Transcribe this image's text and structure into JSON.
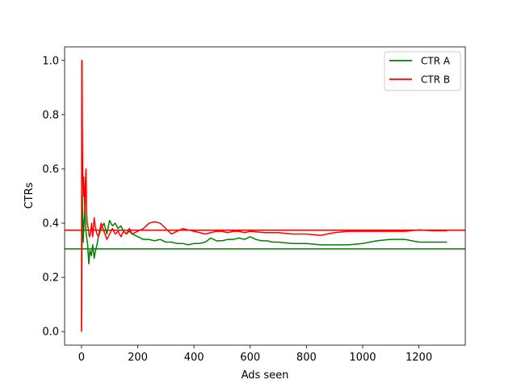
{
  "chart_data": {
    "type": "line",
    "title": "",
    "xlabel": "Ads seen",
    "ylabel": "CTRs",
    "xlim": [
      -60,
      1365
    ],
    "ylim": [
      -0.05,
      1.05
    ],
    "xticks": [
      0,
      200,
      400,
      600,
      800,
      1000,
      1200
    ],
    "yticks": [
      0.0,
      0.2,
      0.4,
      0.6,
      0.8,
      1.0
    ],
    "xtick_labels": [
      "0",
      "200",
      "400",
      "600",
      "800",
      "1000",
      "1200"
    ],
    "ytick_labels": [
      "0.0",
      "0.2",
      "0.4",
      "0.6",
      "0.8",
      "1.0"
    ],
    "grid": false,
    "legend_position": "top-right",
    "series": [
      {
        "name": "CTR A",
        "color": "#008000",
        "x": [
          0,
          3,
          6,
          9,
          12,
          15,
          18,
          22,
          26,
          30,
          35,
          40,
          45,
          50,
          55,
          60,
          70,
          80,
          90,
          100,
          110,
          120,
          130,
          140,
          150,
          160,
          170,
          180,
          200,
          220,
          240,
          260,
          280,
          300,
          320,
          340,
          360,
          380,
          400,
          420,
          440,
          460,
          480,
          500,
          520,
          540,
          560,
          580,
          600,
          620,
          640,
          660,
          680,
          700,
          750,
          800,
          850,
          900,
          950,
          1000,
          1050,
          1100,
          1150,
          1200,
          1250,
          1300
        ],
        "y": [
          0.0,
          0.5,
          0.33,
          0.4,
          0.45,
          0.38,
          0.35,
          0.32,
          0.25,
          0.3,
          0.28,
          0.32,
          0.27,
          0.3,
          0.32,
          0.35,
          0.38,
          0.4,
          0.36,
          0.41,
          0.39,
          0.4,
          0.38,
          0.39,
          0.37,
          0.36,
          0.37,
          0.36,
          0.35,
          0.34,
          0.34,
          0.335,
          0.34,
          0.33,
          0.33,
          0.325,
          0.325,
          0.32,
          0.325,
          0.325,
          0.33,
          0.345,
          0.335,
          0.335,
          0.34,
          0.34,
          0.345,
          0.34,
          0.35,
          0.34,
          0.335,
          0.335,
          0.33,
          0.33,
          0.325,
          0.325,
          0.32,
          0.32,
          0.32,
          0.325,
          0.335,
          0.34,
          0.34,
          0.33,
          0.33,
          0.33
        ]
      },
      {
        "name": "CTR B",
        "color": "#ff0000",
        "x": [
          0,
          1,
          2,
          3,
          4,
          6,
          8,
          10,
          12,
          14,
          16,
          18,
          20,
          24,
          28,
          32,
          36,
          40,
          45,
          50,
          55,
          60,
          70,
          80,
          90,
          100,
          110,
          120,
          130,
          140,
          150,
          160,
          170,
          180,
          200,
          220,
          240,
          260,
          280,
          300,
          320,
          340,
          360,
          380,
          400,
          420,
          440,
          460,
          480,
          500,
          520,
          540,
          560,
          580,
          600,
          650,
          700,
          750,
          800,
          850,
          900,
          950,
          1000,
          1050,
          1100,
          1150,
          1200,
          1250,
          1300
        ],
        "y": [
          0.0,
          1.0,
          1.0,
          0.75,
          0.6,
          0.5,
          0.57,
          0.5,
          0.44,
          0.55,
          0.6,
          0.45,
          0.4,
          0.38,
          0.35,
          0.36,
          0.4,
          0.35,
          0.42,
          0.38,
          0.36,
          0.35,
          0.4,
          0.37,
          0.34,
          0.36,
          0.38,
          0.36,
          0.37,
          0.35,
          0.37,
          0.36,
          0.38,
          0.36,
          0.37,
          0.38,
          0.4,
          0.405,
          0.4,
          0.38,
          0.36,
          0.37,
          0.38,
          0.375,
          0.37,
          0.365,
          0.36,
          0.365,
          0.37,
          0.37,
          0.365,
          0.37,
          0.37,
          0.365,
          0.37,
          0.365,
          0.365,
          0.36,
          0.36,
          0.355,
          0.365,
          0.37,
          0.37,
          0.37,
          0.37,
          0.37,
          0.375,
          0.372,
          0.372
        ]
      }
    ],
    "reference_lines": [
      {
        "orientation": "horizontal",
        "y": 0.305,
        "color": "#008000"
      },
      {
        "orientation": "horizontal",
        "y": 0.374,
        "color": "#ff0000"
      }
    ]
  }
}
